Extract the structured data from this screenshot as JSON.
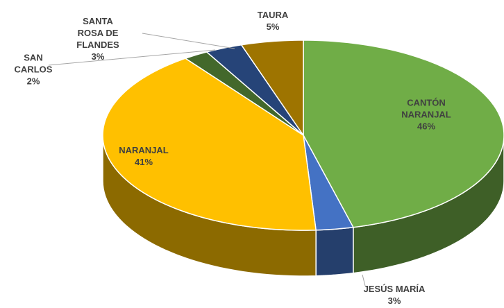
{
  "chart_data": {
    "type": "pie3d",
    "categories": [
      "CANTÓN NARANJAL",
      "JESÚS MARÍA",
      "NARANJAL",
      "SAN CARLOS",
      "SANTA ROSA DE FLANDES",
      "TAURA"
    ],
    "values": [
      46,
      3,
      41,
      2,
      3,
      5
    ],
    "value_labels": [
      "46%",
      "3%",
      "41%",
      "2%",
      "3%",
      "5%"
    ],
    "colors": [
      "#70ad47",
      "#4472c4",
      "#ffc000",
      "#43682b",
      "#264478",
      "#9e7400"
    ]
  }
}
